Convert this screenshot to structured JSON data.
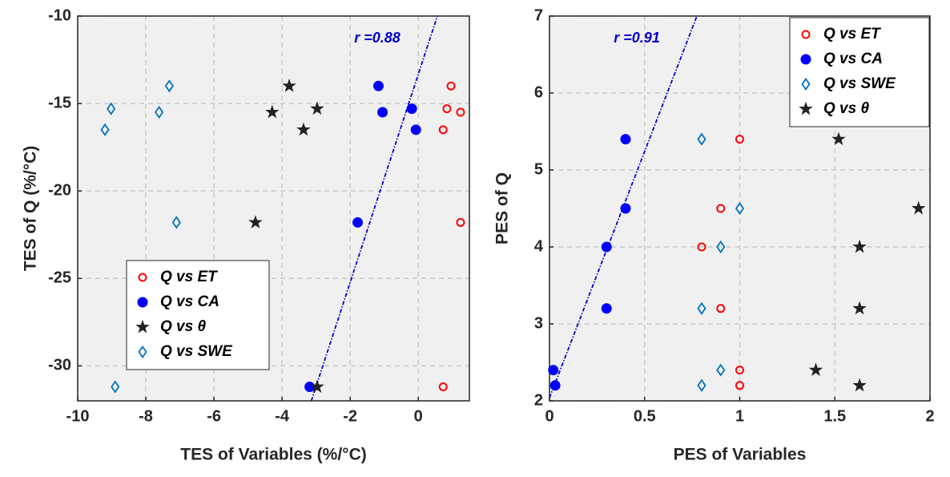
{
  "chart_data": [
    {
      "type": "scatter",
      "xlabel": "TES of Variables (%/°C)",
      "ylabel": "TES of Q (%/°C)",
      "xlim": [
        -10,
        1.5
      ],
      "ylim": [
        -32,
        -10
      ],
      "xticks": [
        -10,
        -8,
        -6,
        -4,
        -2,
        0
      ],
      "yticks": [
        -30,
        -25,
        -20,
        -15,
        -10
      ],
      "grid": true,
      "legend": "lower left",
      "annotation": "r =0.88",
      "fit": {
        "color": "#0000cc",
        "x": [
          -3.14,
          0.56
        ],
        "y": [
          -32,
          -10
        ]
      },
      "series": [
        {
          "name": "Q vs ET",
          "color": "#ff0000",
          "marker": "circle-open",
          "x": [
            0.96,
            0.84,
            1.24,
            0.73,
            1.24,
            0.73
          ],
          "values": [
            -14,
            -15.3,
            -15.5,
            -16.5,
            -21.8,
            -31.2
          ]
        },
        {
          "name": "Q vs CA",
          "color": "#0000ff",
          "marker": "circle",
          "x": [
            -1.17,
            -1.05,
            -0.19,
            -0.07,
            -1.78,
            -3.19
          ],
          "values": [
            -14,
            -15.5,
            -15.3,
            -16.5,
            -21.8,
            -31.2
          ]
        },
        {
          "name": "Q vs θ",
          "color": "#222222",
          "marker": "star",
          "x": [
            -3.79,
            -4.29,
            -2.97,
            -3.37,
            -4.78,
            -2.97
          ],
          "values": [
            -14,
            -15.5,
            -15.3,
            -16.5,
            -21.8,
            -31.2
          ]
        },
        {
          "name": "Q vs SWE",
          "color": "#0072bd",
          "marker": "diamond-open",
          "x": [
            -7.31,
            -9.02,
            -7.61,
            -9.2,
            -7.1,
            -8.9
          ],
          "values": [
            -14,
            -15.3,
            -15.5,
            -16.5,
            -21.8,
            -31.2
          ]
        }
      ]
    },
    {
      "type": "scatter",
      "xlabel": "PES of Variables",
      "ylabel": "PES of Q",
      "xlim": [
        0,
        2
      ],
      "ylim": [
        2,
        7
      ],
      "xticks": [
        0,
        0.5,
        1,
        1.5,
        2
      ],
      "yticks": [
        2,
        3,
        4,
        5,
        6,
        7
      ],
      "grid": true,
      "legend": "upper right",
      "annotation": "r =0.91",
      "fit": {
        "color": "#0000cc",
        "x": [
          0,
          0.775
        ],
        "y": [
          2.04,
          7
        ]
      },
      "series": [
        {
          "name": "Q vs ET",
          "color": "#ff0000",
          "marker": "circle-open",
          "x": [
            1.0,
            0.9,
            0.8,
            0.9,
            1.0,
            1.0
          ],
          "values": [
            5.4,
            4.5,
            4.0,
            3.2,
            2.4,
            2.2
          ]
        },
        {
          "name": "Q vs CA",
          "color": "#0000ff",
          "marker": "circle",
          "x": [
            0.4,
            0.4,
            0.3,
            0.3,
            0.02,
            0.03
          ],
          "values": [
            5.4,
            4.5,
            4.0,
            3.2,
            2.4,
            2.2
          ]
        },
        {
          "name": "Q vs SWE",
          "color": "#0072bd",
          "marker": "diamond-open",
          "x": [
            0.8,
            1.0,
            0.9,
            0.8,
            0.9,
            0.8
          ],
          "values": [
            5.4,
            4.5,
            4.0,
            3.2,
            2.4,
            2.2
          ]
        },
        {
          "name": "Q vs θ",
          "color": "#222222",
          "marker": "star",
          "x": [
            1.52,
            1.94,
            1.63,
            1.63,
            1.4,
            1.63
          ],
          "values": [
            5.4,
            4.5,
            4.0,
            3.2,
            2.4,
            2.2
          ]
        }
      ]
    }
  ]
}
